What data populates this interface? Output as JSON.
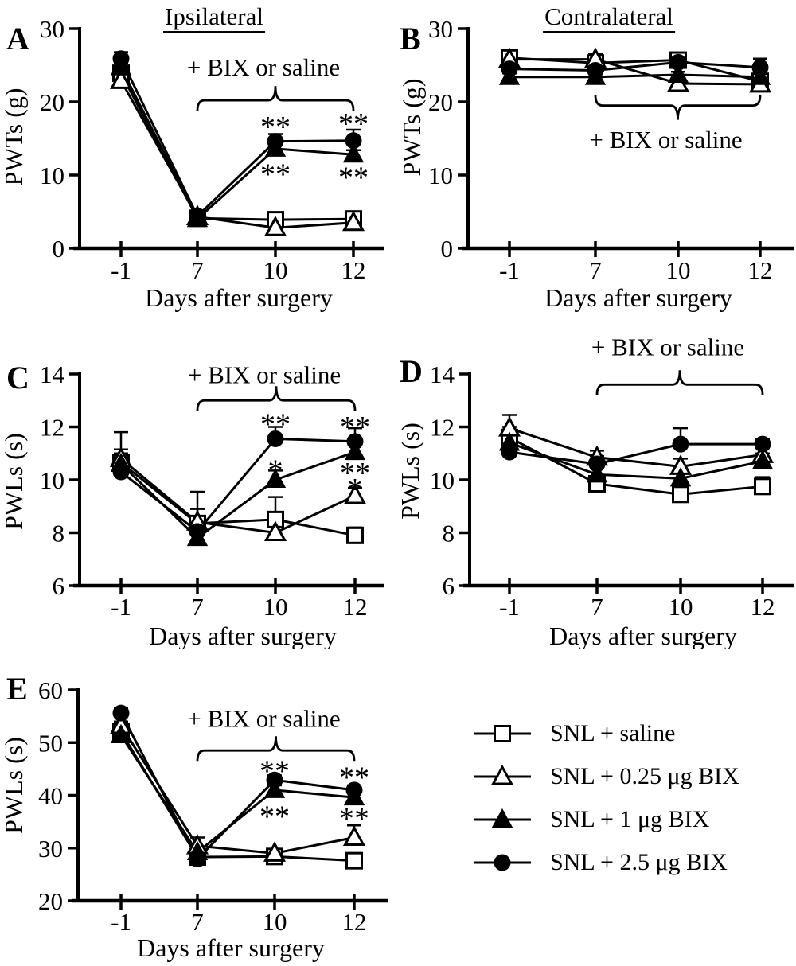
{
  "figure": {
    "column_titles": [
      "Ipsilateral",
      "Contralateral"
    ],
    "bracket_text": "+ BIX or saline",
    "xlabel": "Days after surgery"
  },
  "legend": {
    "items": [
      {
        "label": "SNL + saline",
        "marker": "square-open"
      },
      {
        "label": "SNL + 0.25 μg BIX",
        "marker": "triangle-open"
      },
      {
        "label": "SNL + 1 μg  BIX",
        "marker": "triangle-filled"
      },
      {
        "label": "SNL + 2.5 μg BIX",
        "marker": "circle-filled"
      }
    ]
  },
  "chart_data": [
    {
      "panel": "A",
      "type": "line",
      "title": "Ipsilateral",
      "xlabel": "Days after surgery",
      "ylabel": "PWTs (g)",
      "x": [
        -1,
        7,
        10,
        12
      ],
      "ylim": [
        0,
        30
      ],
      "yticks": [
        0,
        10,
        20,
        30
      ],
      "grid": false,
      "bracket": {
        "text": "+ BIX or saline",
        "from_day": 7,
        "to_day": 12,
        "side": "above",
        "line_y": 20.2,
        "text_y": 23.6
      },
      "series": [
        {
          "name": "SNL + saline",
          "marker": "square-open",
          "values": [
            23.9,
            4.1,
            3.9,
            4.0
          ],
          "err_up": [
            0.7,
            0.4,
            0.7,
            0.6
          ]
        },
        {
          "name": "SNL + 0.25 ug BIX",
          "marker": "triangle-open",
          "values": [
            22.9,
            4.3,
            2.8,
            3.5
          ],
          "err_up": [
            0.6,
            0.4,
            0.4,
            0.5
          ]
        },
        {
          "name": "SNL + 1 ug BIX",
          "marker": "triangle-filled",
          "values": [
            24.7,
            4.0,
            13.6,
            12.8
          ],
          "err_up": [
            0.6,
            0.4,
            0.5,
            0.6
          ]
        },
        {
          "name": "SNL + 2.5 ug BIX",
          "marker": "circle-filled",
          "values": [
            25.9,
            4.4,
            14.6,
            14.7
          ],
          "err_up": [
            0.9,
            0.4,
            1.0,
            1.5
          ]
        }
      ],
      "annotations": [
        {
          "day": 10,
          "y": 17.3,
          "text": "**"
        },
        {
          "day": 10,
          "y": 10.8,
          "text": "**"
        },
        {
          "day": 12,
          "y": 17.7,
          "text": "**"
        },
        {
          "day": 12,
          "y": 10.4,
          "text": "**"
        }
      ]
    },
    {
      "panel": "B",
      "type": "line",
      "title": "Contralateral",
      "xlabel": "Days after surgery",
      "ylabel": "PWTs (g)",
      "x": [
        -1,
        7,
        10,
        12
      ],
      "ylim": [
        0,
        30
      ],
      "yticks": [
        0,
        10,
        20,
        30
      ],
      "grid": false,
      "bracket": {
        "text": "+ BIX or saline",
        "from_day": 7,
        "to_day": 12,
        "side": "below",
        "line_y": 19.5,
        "text_y": 13.7
      },
      "series": [
        {
          "name": "SNL + saline",
          "marker": "square-open",
          "values": [
            26.0,
            25.3,
            25.7,
            22.8
          ],
          "err_up": [
            0.7,
            0.5,
            0.6,
            0.5
          ]
        },
        {
          "name": "SNL + 0.25 ug BIX",
          "marker": "triangle-open",
          "values": [
            25.8,
            25.8,
            22.5,
            22.4
          ],
          "err_up": [
            0.6,
            0.8,
            0.4,
            0.5
          ]
        },
        {
          "name": "SNL + 1 ug BIX",
          "marker": "triangle-filled",
          "values": [
            23.4,
            23.4,
            23.7,
            23.4
          ],
          "err_up": [
            0.5,
            0.5,
            0.4,
            0.5
          ]
        },
        {
          "name": "SNL + 2.5 ug BIX",
          "marker": "circle-filled",
          "values": [
            24.5,
            24.3,
            25.4,
            24.7
          ],
          "err_up": [
            0.5,
            0.5,
            0.6,
            1.2
          ]
        }
      ],
      "annotations": []
    },
    {
      "panel": "C",
      "type": "line",
      "title": null,
      "xlabel": "Days after surgery",
      "ylabel": "PWLs (s)",
      "x": [
        -1,
        7,
        10,
        12
      ],
      "ylim": [
        6,
        14
      ],
      "yticks": [
        6,
        8,
        10,
        12,
        14
      ],
      "grid": false,
      "bracket": {
        "text": "+ BIX or saline",
        "from_day": 7,
        "to_day": 12,
        "side": "above",
        "line_y": 13.0,
        "text_y": 13.65
      },
      "series": [
        {
          "name": "SNL + saline",
          "marker": "square-open",
          "values": [
            10.65,
            8.35,
            8.5,
            7.9
          ],
          "err_up": [
            0.5,
            0.55,
            0.85,
            0.3
          ]
        },
        {
          "name": "SNL + 0.25 ug BIX",
          "marker": "triangle-open",
          "values": [
            10.8,
            8.4,
            8.0,
            9.4
          ],
          "err_up": [
            1.0,
            1.15,
            0.4,
            0.3
          ]
        },
        {
          "name": "SNL + 1 ug BIX",
          "marker": "triangle-filled",
          "values": [
            10.6,
            7.8,
            10.0,
            11.05
          ],
          "err_up": [
            0.4,
            0.3,
            0.35,
            0.3
          ]
        },
        {
          "name": "SNL + 2.5 ug BIX",
          "marker": "circle-filled",
          "values": [
            10.3,
            8.05,
            11.55,
            11.45
          ],
          "err_up": [
            0.4,
            0.4,
            0.45,
            0.5
          ]
        }
      ],
      "annotations": [
        {
          "day": 10,
          "y": 12.3,
          "text": "**"
        },
        {
          "day": 10,
          "y": 10.55,
          "text": "*"
        },
        {
          "day": 12,
          "y": 12.2,
          "text": "**"
        },
        {
          "day": 12,
          "y": 10.45,
          "text": "**"
        },
        {
          "day": 12,
          "y": 9.85,
          "text": "*"
        }
      ]
    },
    {
      "panel": "D",
      "type": "line",
      "title": null,
      "xlabel": "Days after surgery",
      "ylabel": "PWLs (s)",
      "x": [
        -1,
        7,
        10,
        12
      ],
      "ylim": [
        6,
        14
      ],
      "yticks": [
        6,
        8,
        10,
        12,
        14
      ],
      "grid": false,
      "bracket": {
        "text": "+ BIX or saline",
        "from_day": 7,
        "to_day": 12,
        "side": "above",
        "line_y": 13.6,
        "text_y": 14.7
      },
      "series": [
        {
          "name": "SNL + saline",
          "marker": "square-open",
          "values": [
            11.6,
            9.85,
            9.45,
            9.75
          ],
          "err_up": [
            0.4,
            0.25,
            0.25,
            0.35
          ]
        },
        {
          "name": "SNL + 0.25 ug BIX",
          "marker": "triangle-open",
          "values": [
            11.95,
            10.85,
            10.5,
            10.95
          ],
          "err_up": [
            0.5,
            0.25,
            0.3,
            0.25
          ]
        },
        {
          "name": "SNL + 1 ug BIX",
          "marker": "triangle-filled",
          "values": [
            11.4,
            10.2,
            10.05,
            10.7
          ],
          "err_up": [
            0.3,
            0.3,
            0.3,
            0.3
          ]
        },
        {
          "name": "SNL + 2.5 ug BIX",
          "marker": "circle-filled",
          "values": [
            11.05,
            10.6,
            11.35,
            11.35
          ],
          "err_up": [
            0.3,
            0.3,
            0.6,
            0.2
          ]
        }
      ],
      "annotations": []
    },
    {
      "panel": "E",
      "type": "line",
      "title": null,
      "xlabel": "Days after surgery",
      "ylabel": "PWLs (s)",
      "x": [
        -1,
        7,
        10,
        12
      ],
      "ylim": [
        20,
        60
      ],
      "yticks": [
        20,
        30,
        40,
        50,
        60
      ],
      "grid": false,
      "bracket": {
        "text": "+ BIX or saline",
        "from_day": 7,
        "to_day": 12,
        "side": "above",
        "line_y": 48.5,
        "text_y": 53.0
      },
      "series": [
        {
          "name": "SNL + saline",
          "marker": "square-open",
          "values": [
            52.0,
            28.3,
            28.4,
            27.6
          ],
          "err_up": [
            0.9,
            0.8,
            0.6,
            0.6
          ]
        },
        {
          "name": "SNL + 0.25 ug BIX",
          "marker": "triangle-open",
          "values": [
            53.2,
            30.4,
            29.0,
            32.0
          ],
          "err_up": [
            0.8,
            1.6,
            0.8,
            2.3
          ]
        },
        {
          "name": "SNL + 1 ug BIX",
          "marker": "triangle-filled",
          "values": [
            51.4,
            29.2,
            41.0,
            39.6
          ],
          "err_up": [
            0.7,
            0.8,
            0.9,
            0.9
          ]
        },
        {
          "name": "SNL + 2.5 ug BIX",
          "marker": "circle-filled",
          "values": [
            55.6,
            27.9,
            42.9,
            41.0
          ],
          "err_up": [
            1.0,
            0.8,
            0.9,
            0.9
          ]
        }
      ],
      "annotations": [
        {
          "day": 10,
          "y": 45.6,
          "text": "**"
        },
        {
          "day": 10,
          "y": 37.0,
          "text": "**"
        },
        {
          "day": 12,
          "y": 44.4,
          "text": "**"
        },
        {
          "day": 12,
          "y": 36.6,
          "text": "**"
        }
      ]
    }
  ]
}
